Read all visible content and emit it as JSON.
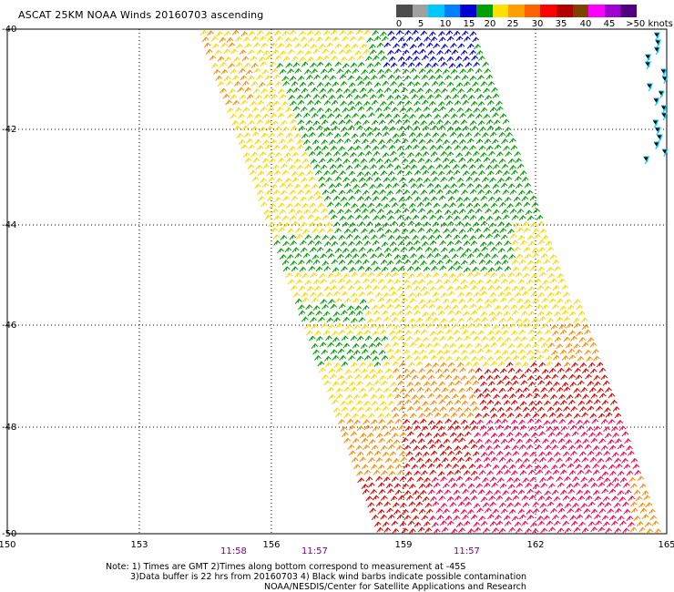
{
  "title": "ASCAT 25KM NOAA Winds 20160703 ascending",
  "legend": {
    "colors": [
      "#4d4d4d",
      "#a0a0a0",
      "#00c8ff",
      "#0080ff",
      "#0000d0",
      "#00a000",
      "#ffe000",
      "#ffa000",
      "#ff6000",
      "#ff0000",
      "#b00000",
      "#804000",
      "#ff00ff",
      "#a000d0",
      "#500080"
    ],
    "labels": [
      "0",
      "5",
      "10",
      "15",
      "20",
      "25",
      "30",
      "35",
      "40",
      "45",
      ">50 knots"
    ]
  },
  "axes": {
    "lon_ticks": [
      "150",
      "153",
      "156",
      "159",
      "162",
      "165"
    ],
    "lat_ticks": [
      "-40",
      "-42",
      "-44",
      "-46",
      "-48",
      "-50"
    ]
  },
  "pass_times": [
    "11:58",
    "11:57",
    "11:57"
  ],
  "notes": [
    "Note: 1) Times are GMT 2)Times along bottom correspond to measurement at -45S",
    "3)Data buffer is 22 hrs from 20160703 4) Black wind barbs indicate possible contamination",
    "NOAA/NESDIS/Center for Satellite Applications and Research"
  ],
  "colors": {
    "blue": "#0000d0",
    "cyan": "#00c8ff",
    "green": "#00a000",
    "yellow": "#ffd800",
    "orange": "#ff8c00",
    "red": "#e00000",
    "crimson": "#ff0050"
  }
}
